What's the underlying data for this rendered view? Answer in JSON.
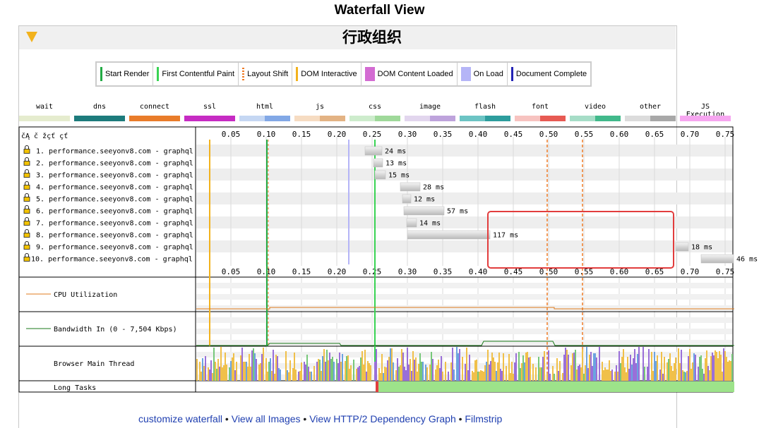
{
  "page_title": "Waterfall View",
  "panel_title": "行政组织",
  "legend": [
    {
      "label": "Start Render",
      "color": "#22aa44",
      "kind": "line"
    },
    {
      "label": "First Contentful Paint",
      "color": "#39d353",
      "kind": "line"
    },
    {
      "label": "Layout Shift",
      "color": "#f07c27",
      "kind": "dashed"
    },
    {
      "label": "DOM Interactive",
      "color": "#f2b21d",
      "kind": "line"
    },
    {
      "label": "DOM Content Loaded",
      "color": "#d36bd2",
      "kind": "box"
    },
    {
      "label": "On Load",
      "color": "#b5b5f7",
      "kind": "box"
    },
    {
      "label": "Document Complete",
      "color": "#2323b5",
      "kind": "line"
    }
  ],
  "request_types": [
    {
      "label": "wait",
      "colors": [
        "#e5ecce",
        "#e5ecce"
      ]
    },
    {
      "label": "dns",
      "colors": [
        "#1d7b7c",
        "#1d7b7c"
      ]
    },
    {
      "label": "connect",
      "colors": [
        "#e97c2a",
        "#e97c2a"
      ]
    },
    {
      "label": "ssl",
      "colors": [
        "#c62bc3",
        "#c62bc3"
      ]
    },
    {
      "label": "html",
      "colors": [
        "#c5d7f3",
        "#82a8e6"
      ]
    },
    {
      "label": "js",
      "colors": [
        "#f6dcc2",
        "#e3b384"
      ]
    },
    {
      "label": "css",
      "colors": [
        "#cdeccc",
        "#9fd99a"
      ]
    },
    {
      "label": "image",
      "colors": [
        "#e2d6ee",
        "#bea3dc"
      ]
    },
    {
      "label": "flash",
      "colors": [
        "#6cc4c4",
        "#2d9d9d"
      ]
    },
    {
      "label": "font",
      "colors": [
        "#f7c3c0",
        "#e75a53"
      ]
    },
    {
      "label": "video",
      "colors": [
        "#a6ddc7",
        "#41b98b"
      ]
    },
    {
      "label": "other",
      "colors": [
        "#dcdcdc",
        "#a8a8a8"
      ]
    },
    {
      "label": "JS Execution",
      "colors": [
        "#f6a6f0",
        "#f6a6f0"
      ]
    }
  ],
  "waterfall": {
    "header_label": "čĄ č žçť çť",
    "ticks": [
      "0.05",
      "0.10",
      "0.15",
      "0.20",
      "0.25",
      "0.30",
      "0.35",
      "0.40",
      "0.45",
      "0.50",
      "0.55",
      "0.60",
      "0.65",
      "0.70",
      "0.75"
    ],
    "markers": {
      "dom_interactive": 0.02,
      "start_render": 0.101,
      "on_load": 0.217,
      "fcp": 0.254,
      "layout_shifts": [
        0.498,
        0.548
      ]
    },
    "requests": [
      {
        "n": "1.",
        "url": "performance.seeyonv8.com - graphql",
        "start": 0.24,
        "duration_ms": 24,
        "label": "24 ms"
      },
      {
        "n": "2.",
        "url": "performance.seeyonv8.com - graphql",
        "start": 0.252,
        "duration_ms": 13,
        "label": "13 ms"
      },
      {
        "n": "3.",
        "url": "performance.seeyonv8.com - graphql",
        "start": 0.254,
        "duration_ms": 15,
        "label": "15 ms"
      },
      {
        "n": "4.",
        "url": "performance.seeyonv8.com - graphql",
        "start": 0.29,
        "duration_ms": 28,
        "label": "28 ms"
      },
      {
        "n": "5.",
        "url": "performance.seeyonv8.com - graphql",
        "start": 0.293,
        "duration_ms": 12,
        "label": "12 ms"
      },
      {
        "n": "6.",
        "url": "performance.seeyonv8.com - graphql",
        "start": 0.295,
        "duration_ms": 57,
        "label": "57 ms"
      },
      {
        "n": "7.",
        "url": "performance.seeyonv8.com - graphql",
        "start": 0.299,
        "duration_ms": 14,
        "label": "14 ms"
      },
      {
        "n": "8.",
        "url": "performance.seeyonv8.com - graphql",
        "start": 0.3,
        "duration_ms": 117,
        "label": "117 ms"
      },
      {
        "n": "9.",
        "url": "performance.seeyonv8.com - graphql",
        "start": 0.68,
        "duration_ms": 18,
        "label": "18 ms"
      },
      {
        "n": "10.",
        "url": "performance.seeyonv8.com - graphql",
        "start": 0.716,
        "duration_ms": 46,
        "label": "46 ms"
      }
    ],
    "cpu_label": "CPU Utilization",
    "cpu_color": "#e07b1c",
    "bandwidth_label": "Bandwidth In (0 - 7,504 Kbps)",
    "bandwidth_color": "#1a7a1a",
    "main_thread_label": "Browser Main Thread",
    "main_thread_colors": [
      "#f0c04a",
      "#9a6fd8",
      "#6ca3e0",
      "#77c87a"
    ],
    "long_tasks_label": "Long Tasks",
    "long_tasks": {
      "red_start": 0.255,
      "red_end": 0.259,
      "green_start": 0.259,
      "green_end": 0.763
    },
    "long_task_colors": {
      "red": "#e23d3d",
      "green": "#9de38a"
    },
    "highlight_color": "#e23d3d"
  },
  "footer_links": [
    "customize waterfall",
    "View all Images",
    "View HTTP/2 Dependency Graph",
    "Filmstrip"
  ],
  "footer_separator": "•"
}
